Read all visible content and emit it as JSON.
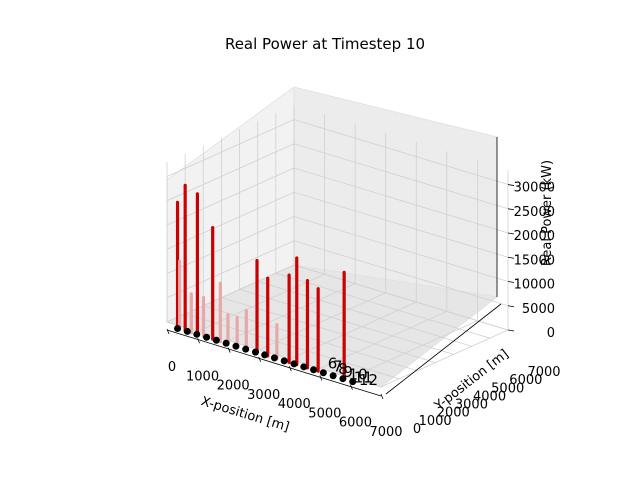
{
  "chart_data": {
    "type": "bar3d",
    "title": "Real Power at Timestep 10",
    "xlabel": "X-position [m]",
    "ylabel": "Y-position [m]",
    "zlabel": "Real Power (kW)",
    "x_ticks": [
      "0",
      "1000",
      "2000",
      "3000",
      "4000",
      "5000",
      "6000",
      "7000"
    ],
    "y_ticks": [
      "0",
      "1000",
      "2000",
      "3000",
      "4000",
      "5000",
      "6000",
      "7000"
    ],
    "z_ticks": [
      "0",
      "5000",
      "10000",
      "15000",
      "20000",
      "25000",
      "30000"
    ],
    "xlim": [
      0,
      7000
    ],
    "ylim": [
      0,
      7000
    ],
    "zlim": [
      0,
      33000
    ],
    "grid": true,
    "node_color": "#000000",
    "bar_color_high": "#cc0000",
    "bar_color_low": "#e6a8a8",
    "tip_labels": [
      "6",
      "7",
      "8",
      "9",
      "10",
      "11",
      "12"
    ],
    "bars": [
      {
        "x": 50,
        "y": 0,
        "value": 26000
      },
      {
        "x": 120,
        "y": 0,
        "value": 14000
      },
      {
        "x": 300,
        "y": 0,
        "value": 30000
      },
      {
        "x": 500,
        "y": 0,
        "value": 8000
      },
      {
        "x": 700,
        "y": 0,
        "value": 29000
      },
      {
        "x": 900,
        "y": 0,
        "value": 8000
      },
      {
        "x": 1200,
        "y": 0,
        "value": 23000
      },
      {
        "x": 1450,
        "y": 0,
        "value": 12000
      },
      {
        "x": 1700,
        "y": 0,
        "value": 6000
      },
      {
        "x": 2000,
        "y": 0,
        "value": 6000
      },
      {
        "x": 2300,
        "y": 0,
        "value": 8000
      },
      {
        "x": 2650,
        "y": 0,
        "value": 19000
      },
      {
        "x": 3000,
        "y": 0,
        "value": 16000
      },
      {
        "x": 3300,
        "y": 0,
        "value": 7000
      },
      {
        "x": 3700,
        "y": 0,
        "value": 18000
      },
      {
        "x": 3950,
        "y": 0,
        "value": 22000
      },
      {
        "x": 4300,
        "y": 0,
        "value": 18000
      },
      {
        "x": 4650,
        "y": 0,
        "value": 17000
      },
      {
        "x": 5500,
        "y": 0,
        "value": 22000
      }
    ],
    "nodes_x": [
      50,
      370,
      680,
      1000,
      1320,
      1640,
      1960,
      2280,
      2600,
      2900,
      3220,
      3540,
      3860,
      4180,
      4500,
      4820,
      5140,
      5460,
      5780
    ]
  }
}
